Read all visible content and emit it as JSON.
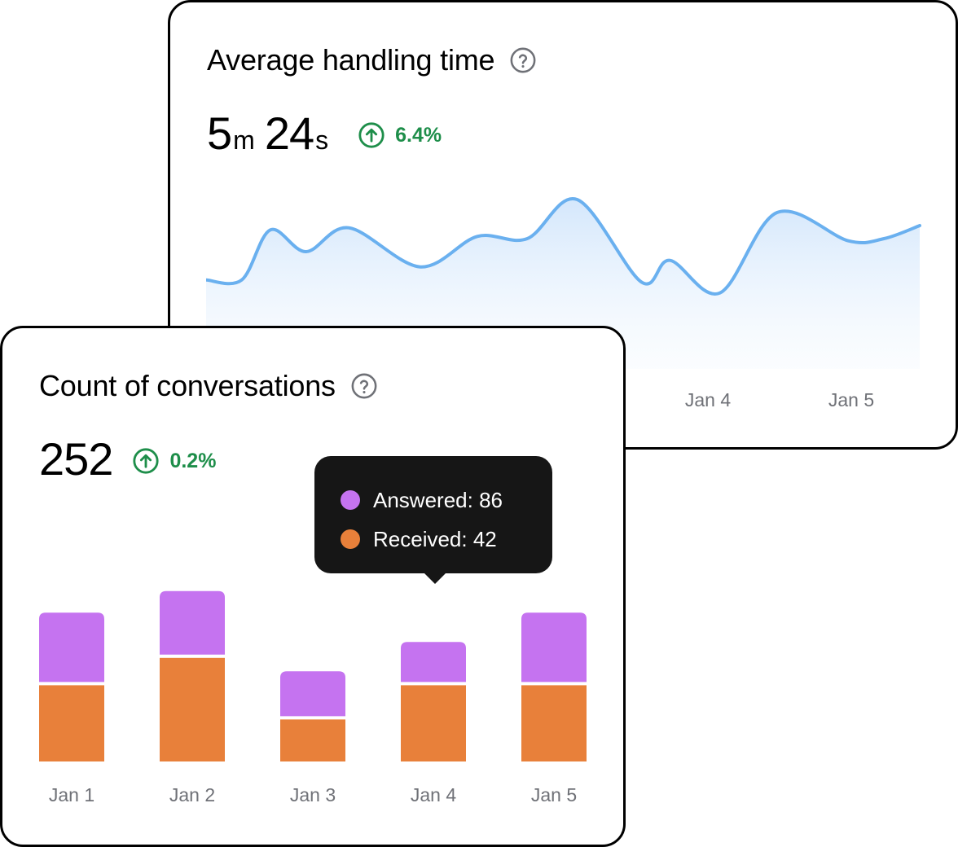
{
  "colors": {
    "answered": "#c573f0",
    "received": "#e8803a",
    "line": "#6ab0ef",
    "positive": "#1e8e4a"
  },
  "aht_card": {
    "title": "Average handling time",
    "value_minutes": "5",
    "minutes_unit": "m",
    "value_seconds": "24",
    "seconds_unit": "s",
    "change": "6.4%",
    "icons": {
      "help": "help-circle-icon",
      "trend": "arrow-up-circle-icon"
    }
  },
  "count_card": {
    "title": "Count of conversations",
    "value": "252",
    "change": "0.2%",
    "tooltip": {
      "answered_label": "Answered: 86",
      "received_label": "Received: 42"
    },
    "icons": {
      "help": "help-circle-icon",
      "trend": "arrow-up-circle-icon"
    }
  },
  "chart_data": [
    {
      "type": "area",
      "title": "Average handling time",
      "x_tick_labels": [
        "Jan 4",
        "Jan 5"
      ],
      "x": [
        0,
        0.05,
        0.09,
        0.14,
        0.2,
        0.3,
        0.38,
        0.45,
        0.52,
        0.61,
        0.65,
        0.72,
        0.8,
        0.9,
        0.95,
        1.0
      ],
      "values": [
        41,
        41,
        64,
        54,
        65,
        47,
        61,
        60,
        78,
        40,
        50,
        35,
        72,
        59,
        60,
        66
      ],
      "ylim": [
        0,
        90
      ],
      "grid": false
    },
    {
      "type": "bar",
      "stacked": true,
      "title": "Count of conversations",
      "categories": [
        "Jan 1",
        "Jan 2",
        "Jan 3",
        "Jan 4",
        "Jan 5"
      ],
      "series": [
        {
          "name": "Received",
          "values": [
            78,
            106,
            43,
            78,
            78
          ]
        },
        {
          "name": "Answered",
          "values": [
            71,
            65,
            46,
            41,
            71
          ]
        }
      ],
      "ylim": [
        0,
        180
      ],
      "grid": false
    }
  ]
}
